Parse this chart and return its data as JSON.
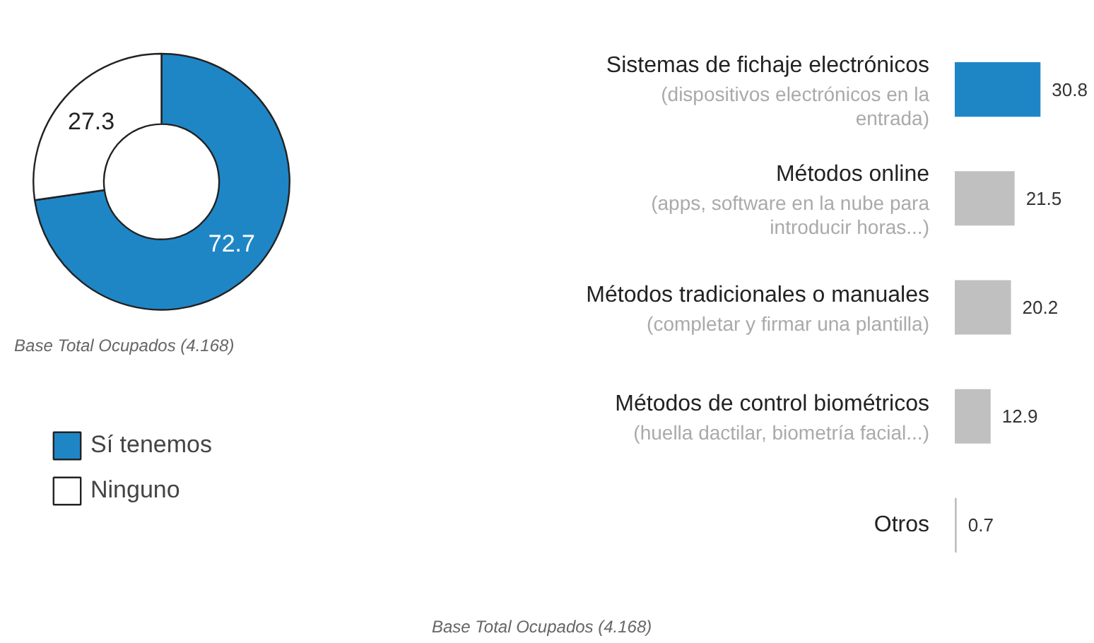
{
  "chart_data": [
    {
      "type": "donut",
      "categories": [
        "Sí tenemos",
        "Ninguno"
      ],
      "values": [
        72.7,
        27.3
      ],
      "colors": [
        "#1f86c6",
        "#ffffff"
      ],
      "data_labels": true,
      "legend": "bottom left",
      "annotations": [
        "Base Total Ocupados (4.168)"
      ]
    },
    {
      "type": "bar",
      "orientation": "horizontal",
      "categories": [
        "Sistemas de fichaje electrónicos\n(dispositivos electrónicos en la\nentrada)",
        "Métodos online\n(apps, software en la nube para\nintroducir horas...)",
        "Métodos tradicionales o manuales\n(completar y firmar una plantilla)",
        "Métodos de control biométricos\n(huella dactilar, biometría facial...)",
        "Otros"
      ],
      "values": [
        30.8,
        21.5,
        20.2,
        12.9,
        0.7
      ],
      "colors": [
        "#1f86c6",
        "#c0c0c0",
        "#c0c0c0",
        "#c0c0c0",
        "#c0c0c0"
      ],
      "data_labels": true,
      "annotations": [
        "Base Total Ocupados (4.168)"
      ]
    }
  ]
}
